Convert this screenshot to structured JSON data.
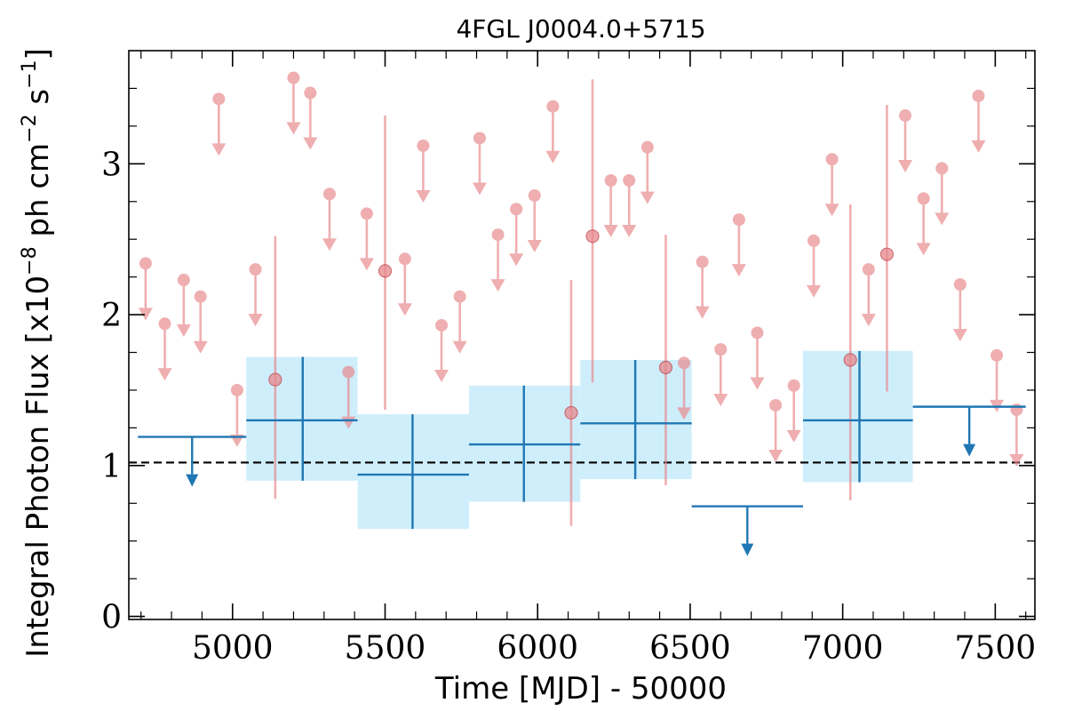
{
  "chart_data": {
    "type": "scatter",
    "title": "4FGL J0004.0+5715",
    "xlabel": "Time [MJD] - 50000",
    "ylabel": "Integral Photon Flux [x10",
    "ylabel_exp1": "−8",
    "ylabel_mid": " ph cm",
    "ylabel_exp2": "−2",
    "ylabel_mid2": " s",
    "ylabel_exp3": "−1",
    "ylabel_end": "]",
    "xlim": [
      4660,
      7630
    ],
    "ylim": [
      -0.02,
      3.75
    ],
    "x_ticks": [
      5000,
      5500,
      6000,
      6500,
      7000,
      7500
    ],
    "x_tick_labels": [
      "5000",
      "5500",
      "6000",
      "6500",
      "7000",
      "7500"
    ],
    "y_ticks": [
      0,
      1,
      2,
      3
    ],
    "y_tick_labels": [
      "0",
      "1",
      "2",
      "3"
    ],
    "reference_line": {
      "y": 1.02,
      "style": "dashed",
      "color": "#000000"
    },
    "colors": {
      "monthly": "#e8888c",
      "yearly": "#1f77b4",
      "yearly_box": "#cfeefc"
    },
    "monthly_upper_limits": [
      [
        4715,
        2.34
      ],
      [
        4778,
        1.94
      ],
      [
        4840,
        2.23
      ],
      [
        4895,
        2.12
      ],
      [
        4955,
        3.43
      ],
      [
        5015,
        1.5
      ],
      [
        5075,
        2.3
      ],
      [
        5200,
        3.57
      ],
      [
        5255,
        3.47
      ],
      [
        5318,
        2.8
      ],
      [
        5380,
        1.62
      ],
      [
        5440,
        2.67
      ],
      [
        5565,
        2.37
      ],
      [
        5625,
        3.12
      ],
      [
        5685,
        1.93
      ],
      [
        5745,
        2.12
      ],
      [
        5810,
        3.17
      ],
      [
        5870,
        2.53
      ],
      [
        5930,
        2.7
      ],
      [
        5990,
        2.79
      ],
      [
        6050,
        3.38
      ],
      [
        6240,
        2.89
      ],
      [
        6300,
        2.89
      ],
      [
        6360,
        3.11
      ],
      [
        6480,
        1.68
      ],
      [
        6540,
        2.35
      ],
      [
        6600,
        1.77
      ],
      [
        6660,
        2.63
      ],
      [
        6720,
        1.88
      ],
      [
        6780,
        1.4
      ],
      [
        6840,
        1.53
      ],
      [
        6905,
        2.49
      ],
      [
        6965,
        3.03
      ],
      [
        7085,
        2.3
      ],
      [
        7205,
        3.32
      ],
      [
        7265,
        2.77
      ],
      [
        7325,
        2.97
      ],
      [
        7385,
        2.2
      ],
      [
        7445,
        3.45
      ],
      [
        7505,
        1.73
      ],
      [
        7570,
        1.37
      ]
    ],
    "monthly_detections": [
      {
        "x": 5140,
        "y": 1.57,
        "lo": 0.78,
        "hi": 2.52
      },
      {
        "x": 5500,
        "y": 2.29,
        "lo": 1.37,
        "hi": 3.32
      },
      {
        "x": 6110,
        "y": 1.35,
        "lo": 0.6,
        "hi": 2.23
      },
      {
        "x": 6180,
        "y": 2.52,
        "lo": 1.55,
        "hi": 3.56
      },
      {
        "x": 6420,
        "y": 1.65,
        "lo": 0.87,
        "hi": 2.53
      },
      {
        "x": 7025,
        "y": 1.7,
        "lo": 0.77,
        "hi": 2.73
      },
      {
        "x": 7145,
        "y": 2.4,
        "lo": 1.49,
        "hi": 3.39
      }
    ],
    "yearly_upper_limits": [
      {
        "x0": 4690,
        "x1": 5045,
        "y": 1.19
      },
      {
        "x0": 6505,
        "x1": 6870,
        "y": 0.73
      },
      {
        "x0": 7230,
        "x1": 7600,
        "y": 1.39
      }
    ],
    "yearly_detections": [
      {
        "x0": 5045,
        "x1": 5410,
        "xc": 5230,
        "y": 1.3,
        "lo": 0.9,
        "hi": 1.72
      },
      {
        "x0": 5410,
        "x1": 5775,
        "xc": 5590,
        "y": 0.94,
        "lo": 0.58,
        "hi": 1.34
      },
      {
        "x0": 5775,
        "x1": 6140,
        "xc": 5955,
        "y": 1.14,
        "lo": 0.76,
        "hi": 1.53
      },
      {
        "x0": 6140,
        "x1": 6505,
        "xc": 6320,
        "y": 1.28,
        "lo": 0.91,
        "hi": 1.7
      },
      {
        "x0": 6870,
        "x1": 7230,
        "xc": 7055,
        "y": 1.3,
        "lo": 0.89,
        "hi": 1.76
      }
    ]
  }
}
